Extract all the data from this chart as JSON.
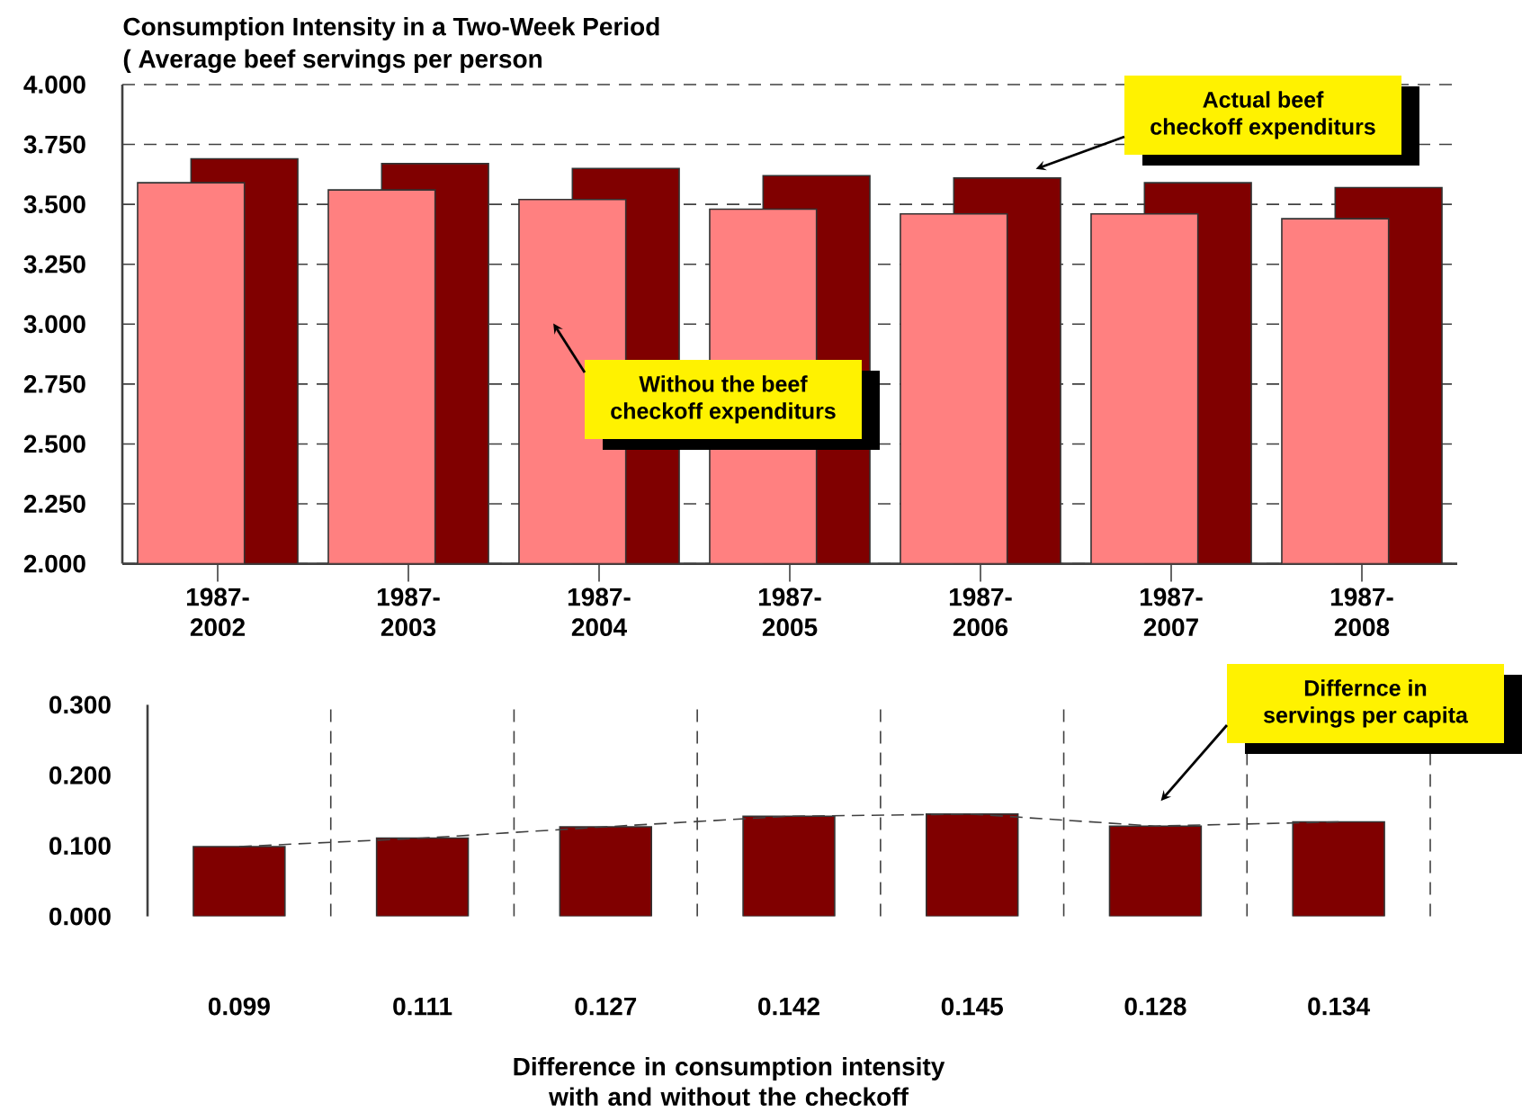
{
  "chart_data": [
    {
      "type": "bar",
      "title": "Consumption Intensity in a Two-Week Period",
      "subtitle": "( Average beef servings per person",
      "categories": [
        "1987-2002",
        "1987-2003",
        "1987-2004",
        "1987-2005",
        "1987-2006",
        "1987-2007",
        "1987-2008"
      ],
      "series": [
        {
          "name": "Withou the beef checkoff expenditurs",
          "color": "#ff8080",
          "values": [
            3.59,
            3.56,
            3.52,
            3.48,
            3.46,
            3.46,
            3.44
          ]
        },
        {
          "name": "Actual beef checkoff expenditurs",
          "color": "#800000",
          "values": [
            3.69,
            3.67,
            3.65,
            3.62,
            3.61,
            3.59,
            3.57
          ]
        }
      ],
      "ylim": [
        2,
        4
      ],
      "yticks": [
        {
          "value": 2,
          "label": "2.000"
        },
        {
          "value": 2.25,
          "label": "2.250"
        },
        {
          "value": 2.5,
          "label": "2.500"
        },
        {
          "value": 2.75,
          "label": "2.750"
        },
        {
          "value": 3,
          "label": "3.000"
        },
        {
          "value": 3.25,
          "label": "3.250"
        },
        {
          "value": 3.5,
          "label": "3.500"
        },
        {
          "value": 3.75,
          "label": "3.750"
        },
        {
          "value": 4,
          "label": "4.000"
        }
      ],
      "grid": "y"
    },
    {
      "type": "bar",
      "xlabel": "Difference in consumption intensity with and without the checkoff",
      "categories": [
        null,
        null,
        null,
        null,
        null,
        null,
        null
      ],
      "series": [
        {
          "name": "Differnce in servings per capita",
          "color": "#800000",
          "values": [
            0.099,
            0.111,
            0.127,
            0.142,
            0.145,
            0.128,
            0.134
          ],
          "value_labels": [
            "0.099",
            "0.111",
            "0.127",
            "0.142",
            "0.145",
            "0.128",
            "0.134"
          ]
        },
        {
          "type": "line",
          "color": "#404040",
          "line_style": "dashed",
          "values": [
            0.099,
            0.111,
            0.127,
            0.142,
            0.145,
            0.128,
            0.134
          ]
        }
      ],
      "ylim": [
        0,
        0.3
      ],
      "yticks": [
        {
          "value": 0,
          "label": "0.000"
        },
        {
          "value": 0.1,
          "label": "0.100"
        },
        {
          "value": 0.2,
          "label": "0.200"
        },
        {
          "value": 0.3,
          "label": "0.300"
        }
      ],
      "grid": "x",
      "tick_labels": "y"
    }
  ]
}
